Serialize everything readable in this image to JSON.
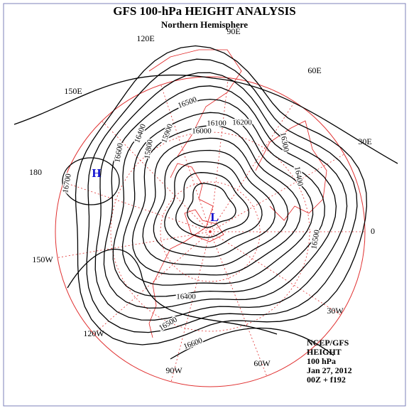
{
  "header": {
    "title": "GFS 100-hPa HEIGHT ANALYSIS",
    "subtitle": "Northern Hemisphere"
  },
  "longitudes": [
    "90E",
    "120E",
    "60E",
    "150E",
    "30E",
    "180",
    "0",
    "150W",
    "30W",
    "120W",
    "90W",
    "60W"
  ],
  "centers": [
    "H",
    "L"
  ],
  "contour_labels": [
    "16500",
    "16400",
    "16600",
    "16700",
    "15900",
    "16000",
    "16100",
    "16200",
    "16300",
    "16400",
    "16500",
    "15800",
    "16400",
    "16500",
    "16600"
  ],
  "info": [
    "NCEP/GFS",
    "HEIGHT",
    "100 hPa",
    "Jan 27, 2012",
    "00Z + f192"
  ]
}
